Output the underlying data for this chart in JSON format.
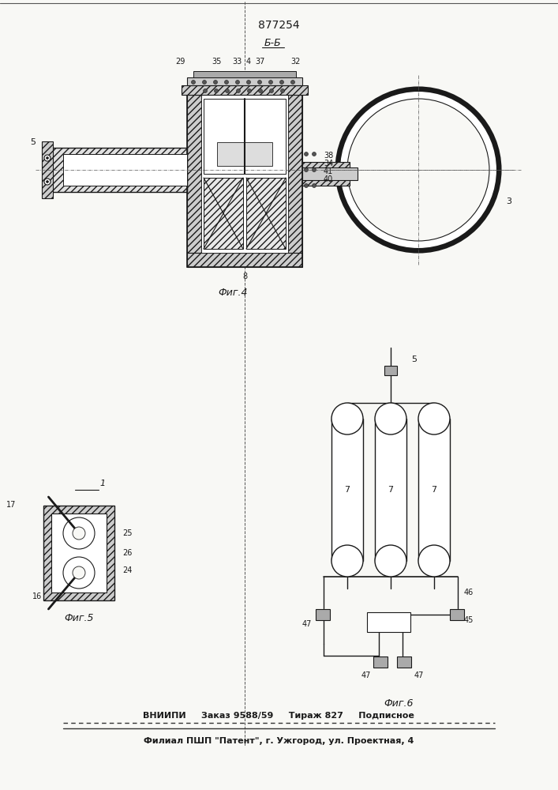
{
  "patent_number": "877254",
  "section_label": "Б-Б",
  "fig4_label": "Фиг.4",
  "fig5_label": "Фиг.5",
  "fig6_label": "Фиг.6",
  "bottom_line1": "ВНИИПИ     Заказ 9588/59     Тираж 827     Подписное",
  "bottom_line2": "Филиал ПШП \"Патент\", г. Ужгород, ул. Проектная, 4",
  "bg_color": "#f8f8f5",
  "lc": "#1a1a1a"
}
